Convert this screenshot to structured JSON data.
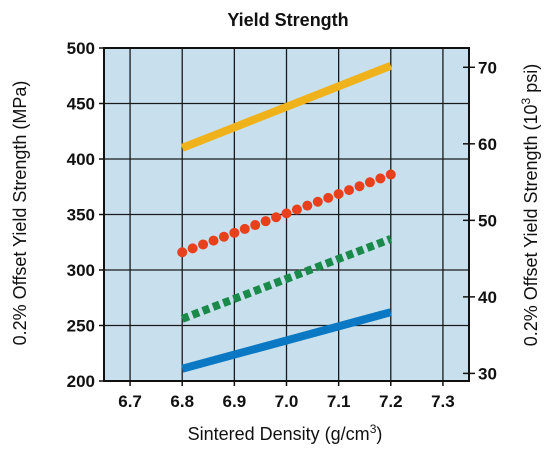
{
  "chart_data": {
    "type": "line",
    "title": "Yield Strength",
    "xlabel": "Sintered Density (g/cm",
    "xlabel_sup": "3",
    "xlabel_end": ")",
    "ylabel": "0.2% Offset Yield Strength (MPa)",
    "y2label_pre": "0.2% Offset Yield Strength (10",
    "y2label_sup": "3",
    "y2label_end": " psi)",
    "xlim": [
      6.65,
      7.35
    ],
    "ylim": [
      200,
      500
    ],
    "x_ticks": [
      "6.7",
      "6.8",
      "6.9",
      "7.0",
      "7.1",
      "7.2",
      "7.3"
    ],
    "y_ticks": [
      "200",
      "250",
      "300",
      "350",
      "400",
      "450",
      "500"
    ],
    "y2_ticks": [
      "30",
      "40",
      "50",
      "60",
      "70"
    ],
    "grid": true,
    "colors": {
      "background": "#c8e0ee",
      "grid": "#1a1a1a"
    },
    "series": [
      {
        "style": "solid",
        "color": "#f0b21a",
        "x": [
          6.8,
          7.2
        ],
        "values": [
          410,
          484
        ]
      },
      {
        "style": "dotted",
        "color": "#e8401c",
        "x": [
          6.8,
          7.2
        ],
        "values": [
          316,
          386
        ]
      },
      {
        "style": "dashed",
        "color": "#1a8a4a",
        "x": [
          6.8,
          7.2
        ],
        "values": [
          256,
          328
        ]
      },
      {
        "style": "solid",
        "color": "#0a78c2",
        "x": [
          6.8,
          7.2
        ],
        "values": [
          211,
          262
        ]
      }
    ]
  }
}
